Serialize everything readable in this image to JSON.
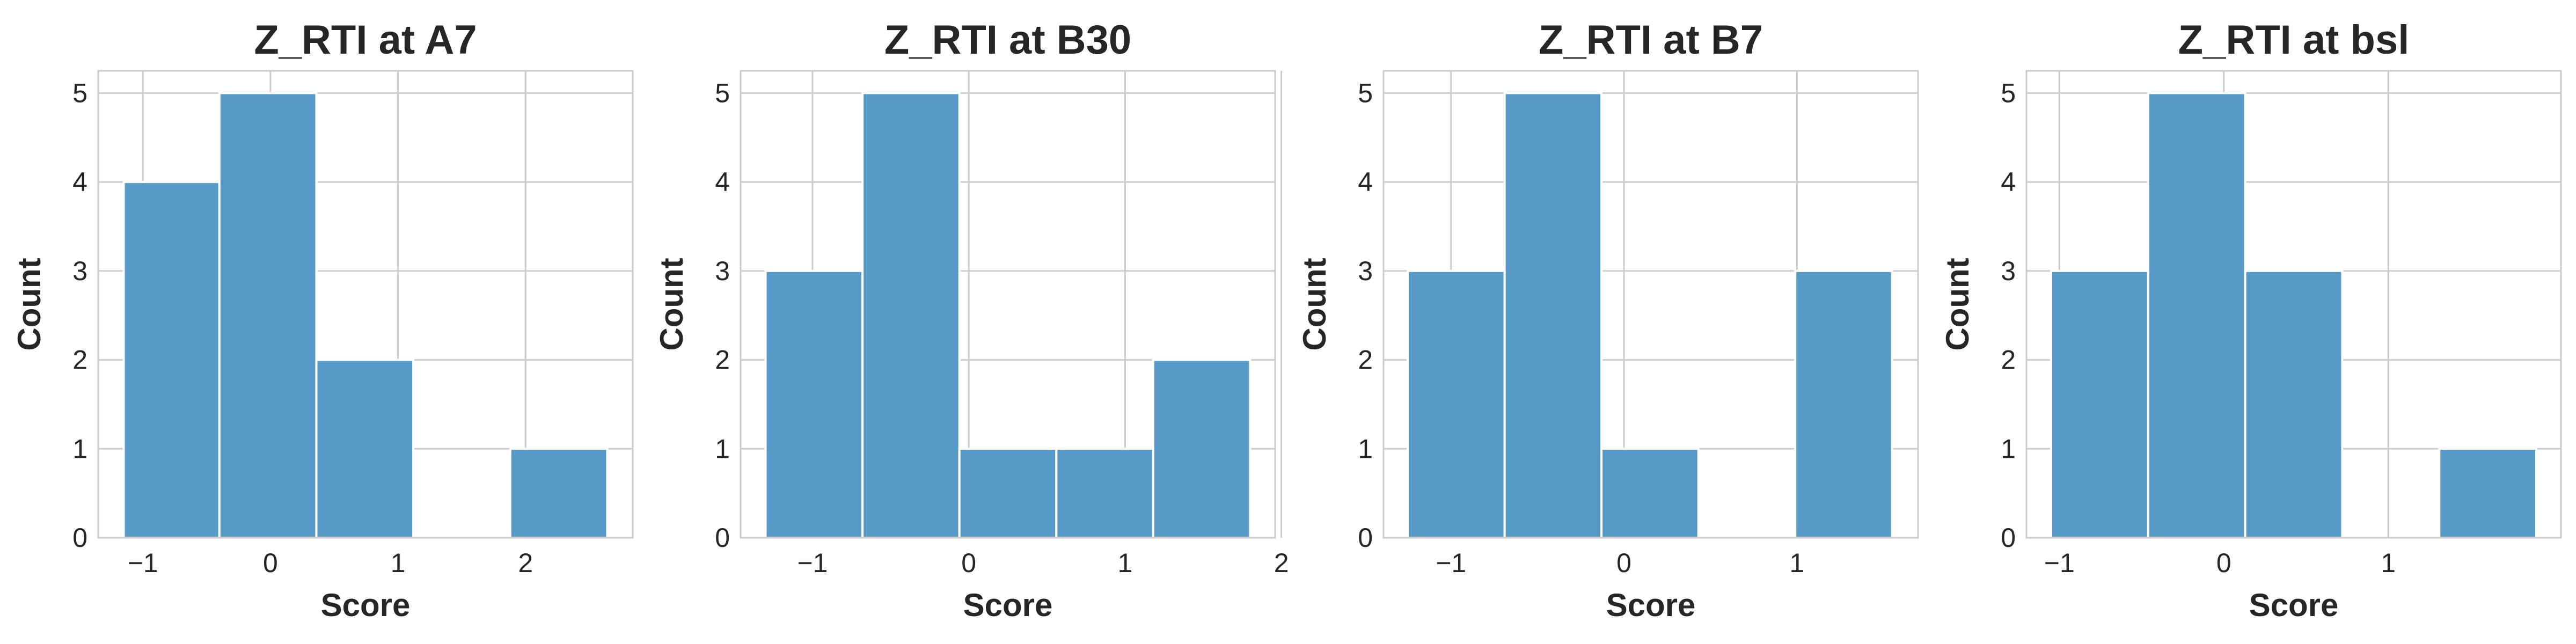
{
  "chart_data": [
    {
      "type": "bar",
      "title": "Z_RTI at A7",
      "xlabel": "Score",
      "ylabel": "Count",
      "bins": [
        {
          "x0": -1.15,
          "x1": -0.4,
          "count": 4
        },
        {
          "x0": -0.4,
          "x1": 0.36,
          "count": 5
        },
        {
          "x0": 0.36,
          "x1": 1.12,
          "count": 2
        },
        {
          "x0": 1.12,
          "x1": 1.88,
          "count": 0
        },
        {
          "x0": 1.88,
          "x1": 2.64,
          "count": 1
        }
      ],
      "xlim": [
        -1.35,
        2.84
      ],
      "ylim": [
        0,
        5.25
      ],
      "xticks": [
        -1,
        0,
        1,
        2
      ],
      "xtick_labels": [
        "−1",
        "0",
        "1",
        "2"
      ],
      "yticks": [
        0,
        1,
        2,
        3,
        4,
        5
      ],
      "ytick_labels": [
        "0",
        "1",
        "2",
        "3",
        "4",
        "5"
      ],
      "grid": true
    },
    {
      "type": "bar",
      "title": "Z_RTI at B30",
      "xlabel": "Score",
      "ylabel": "Count",
      "bins": [
        {
          "x0": -1.3,
          "x1": -0.68,
          "count": 3
        },
        {
          "x0": -0.68,
          "x1": -0.06,
          "count": 5
        },
        {
          "x0": -0.06,
          "x1": 0.56,
          "count": 1
        },
        {
          "x0": 0.56,
          "x1": 1.18,
          "count": 1
        },
        {
          "x0": 1.18,
          "x1": 1.8,
          "count": 2
        }
      ],
      "xlim": [
        -1.46,
        1.96
      ],
      "ylim": [
        0,
        5.25
      ],
      "xticks": [
        -1,
        0,
        1,
        2
      ],
      "xtick_labels": [
        "−1",
        "0",
        "1",
        "2"
      ],
      "yticks": [
        0,
        1,
        2,
        3,
        4,
        5
      ],
      "ytick_labels": [
        "0",
        "1",
        "2",
        "3",
        "4",
        "5"
      ],
      "grid": true
    },
    {
      "type": "bar",
      "title": "Z_RTI at B7",
      "xlabel": "Score",
      "ylabel": "Count",
      "bins": [
        {
          "x0": -1.25,
          "x1": -0.69,
          "count": 3
        },
        {
          "x0": -0.69,
          "x1": -0.13,
          "count": 5
        },
        {
          "x0": -0.13,
          "x1": 0.43,
          "count": 1
        },
        {
          "x0": 0.43,
          "x1": 0.99,
          "count": 0
        },
        {
          "x0": 0.99,
          "x1": 1.55,
          "count": 3
        }
      ],
      "xlim": [
        -1.39,
        1.7
      ],
      "ylim": [
        0,
        5.25
      ],
      "xticks": [
        -1,
        0,
        1
      ],
      "xtick_labels": [
        "−1",
        "0",
        "1"
      ],
      "yticks": [
        0,
        1,
        2,
        3,
        4,
        5
      ],
      "ytick_labels": [
        "0",
        "1",
        "2",
        "3",
        "4",
        "5"
      ],
      "grid": true
    },
    {
      "type": "bar",
      "title": "Z_RTI at bsl",
      "xlabel": "Score",
      "ylabel": "Count",
      "bins": [
        {
          "x0": -1.05,
          "x1": -0.46,
          "count": 3
        },
        {
          "x0": -0.46,
          "x1": 0.13,
          "count": 5
        },
        {
          "x0": 0.13,
          "x1": 0.72,
          "count": 3
        },
        {
          "x0": 0.72,
          "x1": 1.31,
          "count": 0
        },
        {
          "x0": 1.31,
          "x1": 1.9,
          "count": 1
        }
      ],
      "xlim": [
        -1.2,
        2.05
      ],
      "ylim": [
        0,
        5.25
      ],
      "xticks": [
        -1,
        0,
        1
      ],
      "xtick_labels": [
        "−1",
        "0",
        "1"
      ],
      "yticks": [
        0,
        1,
        2,
        3,
        4,
        5
      ],
      "ytick_labels": [
        "0",
        "1",
        "2",
        "3",
        "4",
        "5"
      ],
      "grid": true
    }
  ],
  "colors": {
    "bar": "#5799c7",
    "grid": "#cccccc",
    "text": "#262626"
  }
}
